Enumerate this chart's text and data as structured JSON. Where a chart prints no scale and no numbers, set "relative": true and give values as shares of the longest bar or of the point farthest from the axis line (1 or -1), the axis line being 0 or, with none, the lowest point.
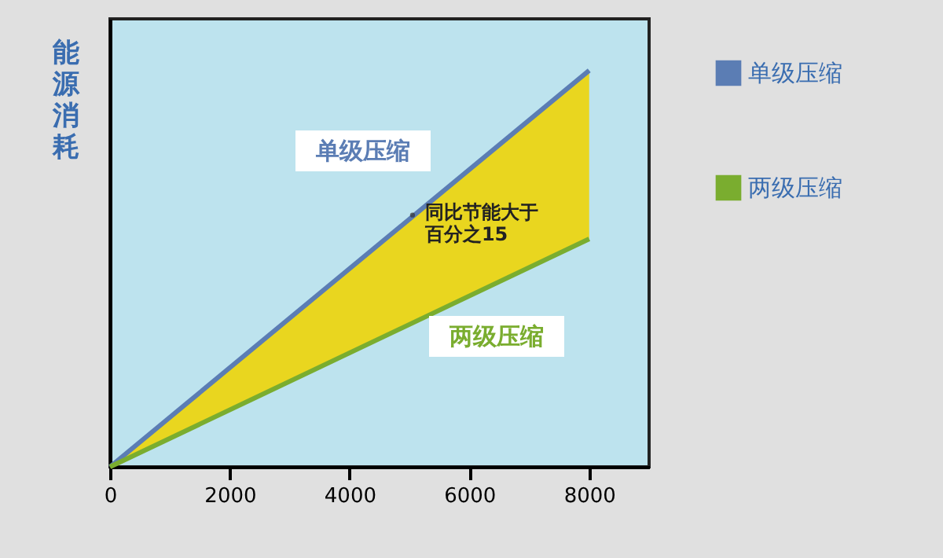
{
  "chart_data": {
    "type": "line",
    "relative": true,
    "ylabel": "能源消耗",
    "x": [
      0,
      8000
    ],
    "xlim": [
      0,
      9000
    ],
    "xticks": [
      0,
      2000,
      4000,
      6000,
      8000
    ],
    "legend": "right",
    "grid": false,
    "marker": "none",
    "line_style": "solid",
    "series": [
      {
        "name": "单级压缩",
        "color": "#5b7db4",
        "values": [
          0,
          1
        ]
      },
      {
        "name": "两级压缩",
        "color": "#7aad2f",
        "values": [
          0,
          0.575
        ],
        "lower": [
          0,
          0.575
        ],
        "upper": [
          0,
          1
        ]
      }
    ],
    "annotations": [
      "单级压缩",
      "两级压缩",
      {
        "text": "同比节能大于百分之15",
        "x": 5050,
        "y": 0.635
      }
    ]
  }
}
